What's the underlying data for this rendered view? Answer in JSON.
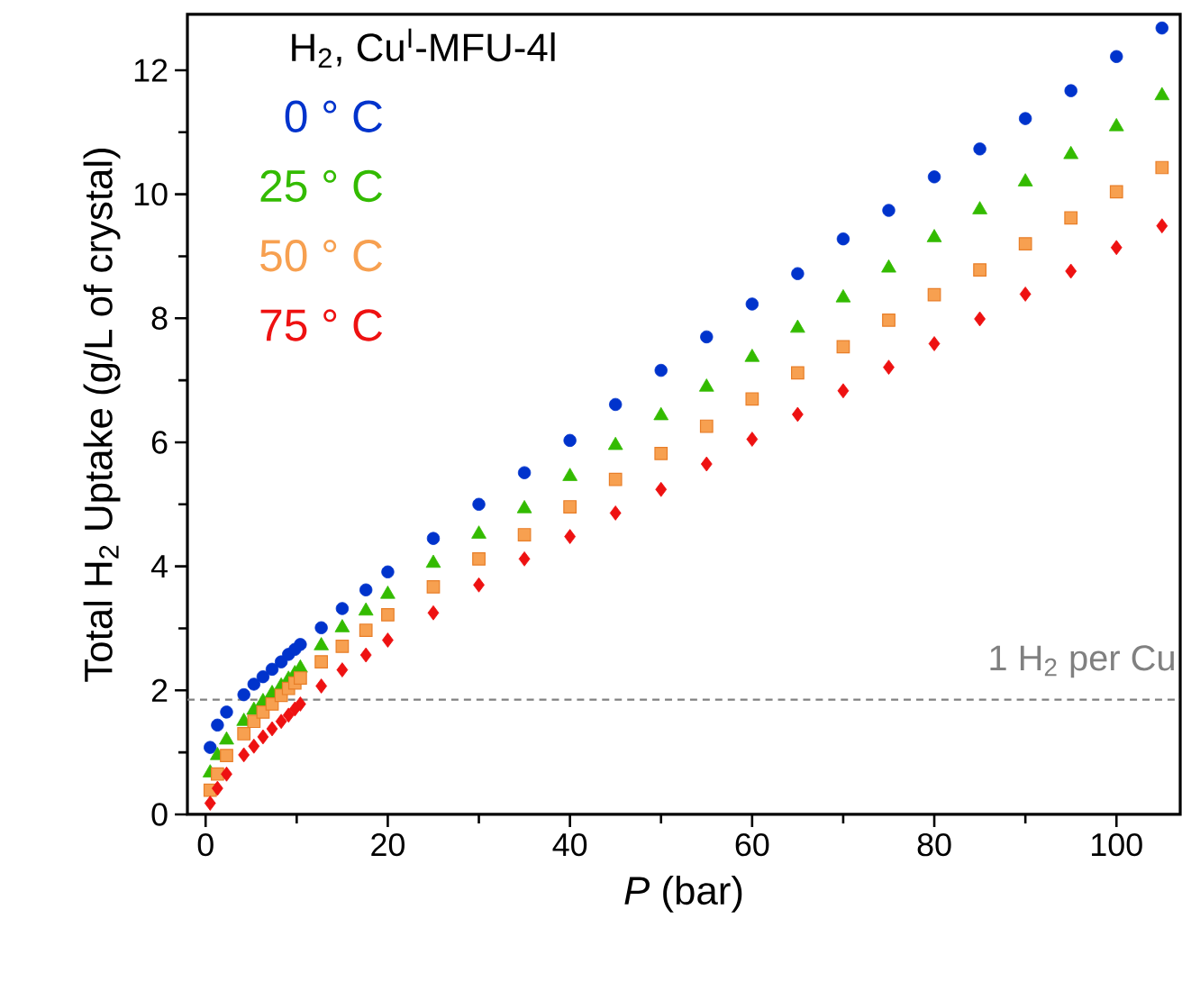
{
  "chart_data": {
    "type": "scatter",
    "legend_title": "H$_{2}$, Cu$^{I}$-MFU-4l",
    "xlabel": "*P* (bar)",
    "ylabel": "Total H$_{2}$ Uptake (g/L of crystal)",
    "xlim": [
      -2,
      107
    ],
    "ylim": [
      0,
      12.9
    ],
    "xticks": [
      0,
      20,
      40,
      60,
      80,
      100
    ],
    "yticks": [
      0,
      2,
      4,
      6,
      8,
      10,
      12
    ],
    "legend": "top left",
    "series": [
      {
        "name": "0 ° C",
        "color": "#0033cc",
        "marker": "circle",
        "x": [
          0.5,
          1.3,
          2.3,
          4.2,
          5.3,
          6.3,
          7.3,
          8.3,
          9.1,
          9.8,
          10.4,
          12.7,
          15,
          17.6,
          20,
          25,
          30,
          35,
          40,
          45,
          50,
          55,
          60,
          65,
          70,
          75,
          80,
          85,
          90,
          95,
          100,
          105
        ],
        "values": [
          1.08,
          1.44,
          1.65,
          1.93,
          2.1,
          2.22,
          2.34,
          2.46,
          2.58,
          2.66,
          2.74,
          3.01,
          3.32,
          3.62,
          3.91,
          4.45,
          5.0,
          5.51,
          6.03,
          6.61,
          7.16,
          7.7,
          8.23,
          8.72,
          9.28,
          9.74,
          10.28,
          10.73,
          11.22,
          11.67,
          12.22,
          12.68
        ]
      },
      {
        "name": "25 ° C",
        "color": "#33bb00",
        "marker": "triangle",
        "x": [
          0.5,
          1.3,
          2.3,
          4.2,
          5.3,
          6.3,
          7.3,
          8.3,
          9.1,
          9.8,
          10.4,
          12.7,
          15,
          17.6,
          20,
          25,
          30,
          35,
          40,
          45,
          50,
          55,
          60,
          65,
          70,
          75,
          80,
          85,
          90,
          95,
          100,
          105
        ],
        "values": [
          0.67,
          0.95,
          1.2,
          1.5,
          1.68,
          1.82,
          1.95,
          2.07,
          2.18,
          2.27,
          2.36,
          2.72,
          3.01,
          3.28,
          3.55,
          4.05,
          4.52,
          4.93,
          5.45,
          5.95,
          6.43,
          6.89,
          7.37,
          7.84,
          8.33,
          8.81,
          9.3,
          9.75,
          10.2,
          10.64,
          11.09,
          11.59
        ]
      },
      {
        "name": "50 ° C",
        "color": "#f7a050",
        "marker": "square",
        "x": [
          0.5,
          1.3,
          2.3,
          4.2,
          5.3,
          6.3,
          7.3,
          8.3,
          9.1,
          9.8,
          10.4,
          12.7,
          15,
          17.6,
          20,
          25,
          30,
          35,
          40,
          45,
          50,
          55,
          60,
          65,
          70,
          75,
          80,
          85,
          90,
          95,
          100,
          105
        ],
        "values": [
          0.39,
          0.65,
          0.95,
          1.3,
          1.5,
          1.65,
          1.78,
          1.92,
          2.03,
          2.12,
          2.2,
          2.46,
          2.71,
          2.97,
          3.22,
          3.67,
          4.12,
          4.51,
          4.96,
          5.4,
          5.82,
          6.26,
          6.7,
          7.12,
          7.54,
          7.97,
          8.38,
          8.78,
          9.2,
          9.62,
          10.04,
          10.43
        ]
      },
      {
        "name": "75 ° C",
        "color": "#ee1111",
        "marker": "diamond",
        "x": [
          0.5,
          1.3,
          2.3,
          4.2,
          5.3,
          6.3,
          7.3,
          8.3,
          9.1,
          9.8,
          10.4,
          12.7,
          15,
          17.6,
          20,
          25,
          30,
          35,
          40,
          45,
          50,
          55,
          60,
          65,
          70,
          75,
          80,
          85,
          90,
          95,
          100,
          105
        ],
        "values": [
          0.18,
          0.42,
          0.65,
          0.96,
          1.1,
          1.25,
          1.38,
          1.5,
          1.6,
          1.7,
          1.78,
          2.07,
          2.33,
          2.57,
          2.81,
          3.25,
          3.7,
          4.12,
          4.48,
          4.86,
          5.24,
          5.65,
          6.05,
          6.45,
          6.83,
          7.21,
          7.59,
          7.99,
          8.39,
          8.76,
          9.14,
          9.49
        ]
      }
    ],
    "ref_lines": [
      {
        "axis": "y",
        "value": 1.85,
        "label": "1 H$_{2}$ per Cu",
        "color": "#808080",
        "line_style": "dashed"
      }
    ]
  }
}
